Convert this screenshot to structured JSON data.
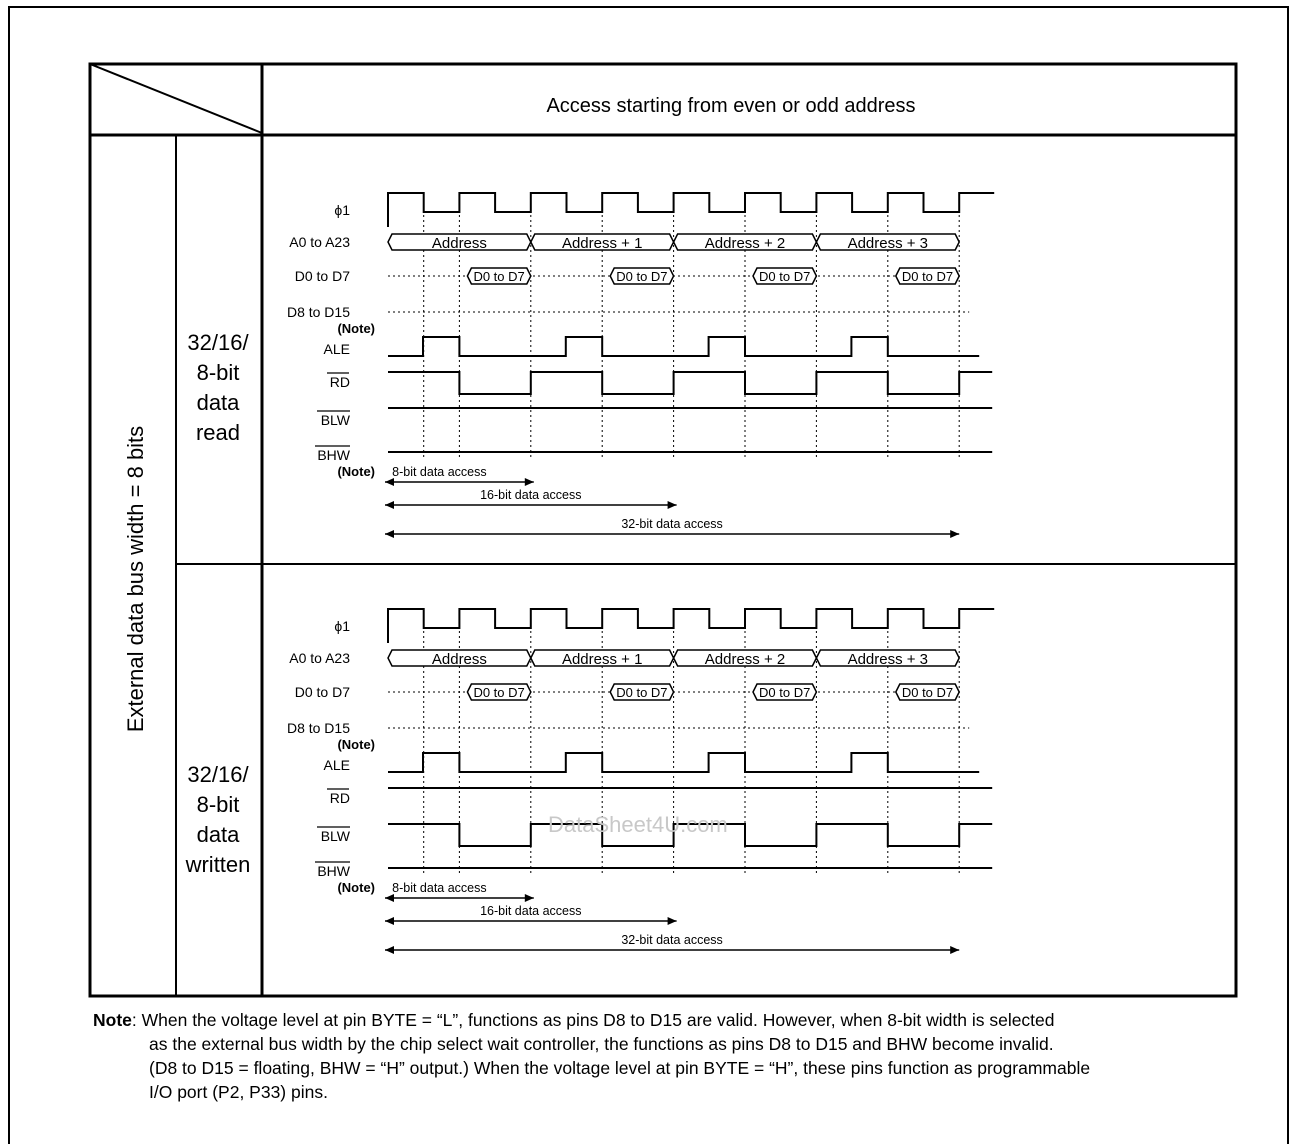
{
  "table": {
    "header": "Access starting from even or odd address",
    "side_label": "External data bus width = 8 bits",
    "rows": [
      {
        "label_lines": [
          "32/16/",
          "8-bit",
          "data",
          "read"
        ]
      },
      {
        "label_lines": [
          "32/16/",
          "8-bit",
          "data",
          "written"
        ]
      }
    ]
  },
  "timing": {
    "signals": [
      "ϕ1",
      "A0 to A23",
      "D0 to D7",
      "D8 to D15",
      "(Note)",
      "ALE",
      "RD",
      "BLW",
      "BHW",
      "(Note)"
    ],
    "bus_labels": [
      "Address",
      "Address + 1",
      "Address + 2",
      "Address + 3"
    ],
    "data_label": "D0 to D7",
    "accesses": [
      "8-bit data access",
      "16-bit data access",
      "32-bit data access"
    ]
  },
  "watermark": "DataSheet4U.com",
  "note": {
    "label": "Note",
    "line1": ": When the voltage level at pin BYTE = “L”, functions as pins D8 to D15 are valid. However, when 8-bit width is selected",
    "line2": "as the external bus width by the chip select wait controller, the functions as pins D8 to D15 and BHW become invalid.",
    "line3": "(D8 to D15 = floating, BHW = “H” output.) When the voltage level at pin BYTE = “H”, these pins function as programmable",
    "line4": "I/O port (P2, P33) pins."
  }
}
